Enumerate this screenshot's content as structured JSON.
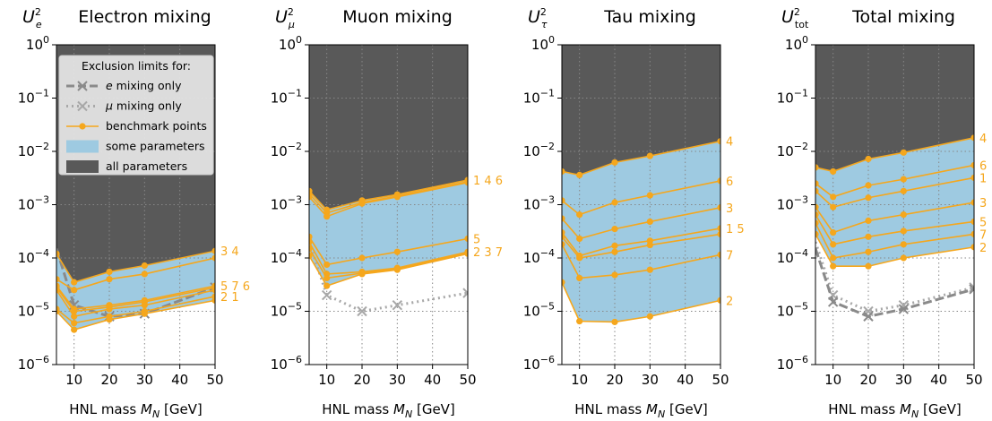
{
  "chart_data": [
    {
      "type": "line",
      "title": "Electron mixing",
      "ylabel": "U_e^2",
      "xlabel": "HNL mass M_N [GeV]",
      "xlim": [
        5,
        50
      ],
      "ylim": [
        1e-06,
        1
      ],
      "yscale": "log",
      "x_ticks": [
        10,
        20,
        30,
        40,
        50
      ],
      "y_ticks": [
        1e-06,
        1e-05,
        0.0001,
        0.001,
        0.01,
        0.1,
        1
      ],
      "grid": true,
      "x": [
        5,
        10,
        20,
        30,
        50
      ],
      "all_parameters_lower": [
        0.00012,
        3.5e-05,
        5.5e-05,
        7.2e-05,
        0.000135
      ],
      "some_parameters_lower": [
        1e-05,
        4.5e-06,
        7e-06,
        9e-06,
        1.6e-05
      ],
      "benchmark_series": [
        {
          "name": "3",
          "values": [
            0.00012,
            3.5e-05,
            5.5e-05,
            7.2e-05,
            0.000135
          ]
        },
        {
          "name": "4",
          "values": [
            4e-05,
            2.5e-05,
            4e-05,
            5e-05,
            0.0001
          ]
        },
        {
          "name": "5",
          "values": [
            3e-05,
            1.1e-05,
            1.3e-05,
            1.6e-05,
            3e-05
          ]
        },
        {
          "name": "7",
          "values": [
            2.8e-05,
            1e-05,
            1.2e-05,
            1.5e-05,
            2.8e-05
          ]
        },
        {
          "name": "6",
          "values": [
            2.5e-05,
            8e-06,
            1.1e-05,
            1.3e-05,
            2.5e-05
          ]
        },
        {
          "name": "2",
          "values": [
            1.1e-05,
            6e-06,
            8e-06,
            1e-05,
            1.9e-05
          ]
        },
        {
          "name": "1",
          "values": [
            1e-05,
            4.5e-06,
            7e-06,
            9e-06,
            1.6e-05
          ]
        }
      ],
      "e_mixing_only": [
        0.00015,
        1.3e-05,
        8e-06,
        9e-06,
        2.8e-05
      ],
      "mu_mixing_only": null,
      "legend": {
        "title": "Exclusion limits for:",
        "entries": [
          "e mixing only",
          "μ mixing only",
          "benchmark points",
          "some parameters",
          "all parameters"
        ],
        "placement": "upper-right"
      }
    },
    {
      "type": "line",
      "title": "Muon mixing",
      "ylabel": "U_μ^2",
      "xlabel": "HNL mass M_N [GeV]",
      "xlim": [
        5,
        50
      ],
      "ylim": [
        1e-06,
        1
      ],
      "yscale": "log",
      "x_ticks": [
        10,
        20,
        30,
        40,
        50
      ],
      "y_ticks": [
        1e-06,
        1e-05,
        0.0001,
        0.001,
        0.01,
        0.1,
        1
      ],
      "grid": true,
      "x": [
        5,
        10,
        20,
        30,
        50
      ],
      "all_parameters_lower": [
        0.0018,
        0.0008,
        0.0012,
        0.00155,
        0.0029
      ],
      "some_parameters_lower": [
        0.00011,
        3e-05,
        5e-05,
        6e-05,
        0.00012
      ],
      "benchmark_series": [
        {
          "name": "1",
          "values": [
            0.0018,
            0.0008,
            0.0012,
            0.00155,
            0.0029
          ]
        },
        {
          "name": "4",
          "values": [
            0.0016,
            0.0007,
            0.0011,
            0.00145,
            0.0027
          ]
        },
        {
          "name": "6",
          "values": [
            0.0014,
            0.0006,
            0.00105,
            0.0014,
            0.0026
          ]
        },
        {
          "name": "5",
          "values": [
            0.00025,
            7.5e-05,
            0.0001,
            0.00013,
            0.00023
          ]
        },
        {
          "name": "2",
          "values": [
            0.0002,
            5e-05,
            5.5e-05,
            6.5e-05,
            0.00013
          ]
        },
        {
          "name": "3",
          "values": [
            0.00015,
            4.2e-05,
            5.2e-05,
            6.2e-05,
            0.000125
          ]
        },
        {
          "name": "7",
          "values": [
            0.00011,
            3e-05,
            5e-05,
            6e-05,
            0.00012
          ]
        }
      ],
      "e_mixing_only": null,
      "mu_mixing_only": [
        0.0002,
        2e-05,
        1e-05,
        1.3e-05,
        2.2e-05
      ]
    },
    {
      "type": "line",
      "title": "Tau mixing",
      "ylabel": "U_τ^2",
      "xlabel": "HNL mass M_N [GeV]",
      "xlim": [
        5,
        50
      ],
      "ylim": [
        1e-06,
        1
      ],
      "yscale": "log",
      "x_ticks": [
        10,
        20,
        30,
        40,
        50
      ],
      "y_ticks": [
        1e-06,
        1e-05,
        0.0001,
        0.001,
        0.01,
        0.1,
        1
      ],
      "grid": true,
      "x": [
        5,
        10,
        20,
        30,
        50
      ],
      "all_parameters_lower": [
        0.0042,
        0.0036,
        0.0062,
        0.0082,
        0.0155
      ],
      "some_parameters_lower": [
        3.5e-05,
        6.5e-06,
        6.3e-06,
        8e-06,
        1.6e-05
      ],
      "benchmark_series": [
        {
          "name": "4",
          "values": [
            0.0042,
            0.0036,
            0.0062,
            0.0082,
            0.0155
          ]
        },
        {
          "name": "6",
          "values": [
            0.0012,
            0.00065,
            0.0011,
            0.0015,
            0.0028
          ]
        },
        {
          "name": "3",
          "values": [
            0.00055,
            0.00023,
            0.00035,
            0.00048,
            0.00088
          ]
        },
        {
          "name": "1",
          "values": [
            0.0003,
            0.00011,
            0.00017,
            0.00021,
            0.00036
          ]
        },
        {
          "name": "5",
          "values": [
            0.00025,
            0.0001,
            0.00013,
            0.000175,
            0.00028
          ]
        },
        {
          "name": "7",
          "values": [
            0.00018,
            4.2e-05,
            4.8e-05,
            6e-05,
            0.000115
          ]
        },
        {
          "name": "2",
          "values": [
            3.5e-05,
            6.5e-06,
            6.3e-06,
            8e-06,
            1.6e-05
          ]
        }
      ],
      "e_mixing_only": null,
      "mu_mixing_only": null
    },
    {
      "type": "line",
      "title": "Total mixing",
      "ylabel": "U_tot^2",
      "xlabel": "HNL mass M_N [GeV]",
      "xlim": [
        5,
        50
      ],
      "ylim": [
        1e-06,
        1
      ],
      "yscale": "log",
      "x_ticks": [
        10,
        20,
        30,
        40,
        50
      ],
      "y_ticks": [
        1e-06,
        1e-05,
        0.0001,
        0.001,
        0.01,
        0.1,
        1
      ],
      "grid": true,
      "x": [
        5,
        10,
        20,
        30,
        50
      ],
      "all_parameters_lower": [
        0.005,
        0.0042,
        0.0072,
        0.0095,
        0.018
      ],
      "some_parameters_lower": [
        0.00028,
        7e-05,
        7e-05,
        0.0001,
        0.00016
      ],
      "benchmark_series": [
        {
          "name": "4",
          "values": [
            0.005,
            0.0042,
            0.0072,
            0.0095,
            0.018
          ]
        },
        {
          "name": "6",
          "values": [
            0.0025,
            0.0014,
            0.0023,
            0.003,
            0.0055
          ]
        },
        {
          "name": "1",
          "values": [
            0.0018,
            0.0009,
            0.00135,
            0.0018,
            0.0032
          ]
        },
        {
          "name": "3",
          "values": [
            0.0009,
            0.0003,
            0.0005,
            0.00065,
            0.0011
          ]
        },
        {
          "name": "5",
          "values": [
            0.00065,
            0.00018,
            0.00025,
            0.00032,
            0.00048
          ]
        },
        {
          "name": "7",
          "values": [
            0.00045,
            0.0001,
            0.00013,
            0.00018,
            0.00028
          ]
        },
        {
          "name": "2",
          "values": [
            0.00028,
            7e-05,
            7e-05,
            0.0001,
            0.00016
          ]
        }
      ],
      "e_mixing_only": [
        0.00015,
        1.5e-05,
        8e-06,
        1.1e-05,
        2.6e-05
      ],
      "mu_mixing_only": [
        0.0002,
        2e-05,
        1e-05,
        1.3e-05,
        2.8e-05
      ]
    }
  ],
  "colors": {
    "all_parameters": "#595959",
    "some_parameters": "#9ecae1",
    "benchmark": "#f5a71d",
    "e_only": "#8a8a8a",
    "mu_only": "#a8a8a8",
    "grid": "#888888"
  },
  "tick_text": {
    "x": [
      "10",
      "20",
      "30",
      "40",
      "50"
    ],
    "y_base": "10",
    "y_exponents": [
      "−6",
      "−5",
      "−4",
      "−3",
      "−2",
      "−1",
      "0"
    ]
  }
}
